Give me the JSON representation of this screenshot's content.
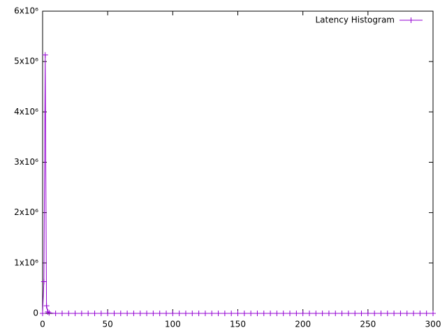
{
  "chart_data": {
    "type": "line",
    "x": [
      0,
      1,
      2,
      3,
      4,
      5,
      10,
      15,
      20,
      25,
      30,
      35,
      40,
      45,
      50,
      55,
      60,
      65,
      70,
      75,
      80,
      85,
      90,
      95,
      100,
      105,
      110,
      115,
      120,
      125,
      130,
      135,
      140,
      145,
      150,
      155,
      160,
      165,
      170,
      175,
      180,
      185,
      190,
      195,
      200,
      205,
      210,
      215,
      220,
      225,
      230,
      235,
      240,
      245,
      250,
      255,
      260,
      265,
      270,
      275,
      280,
      285,
      290,
      295,
      300
    ],
    "series": [
      {
        "name": "Latency Histogram",
        "color": "#9400d3",
        "values": [
          0,
          630000,
          5130000,
          150000,
          30000,
          10000,
          0,
          0,
          0,
          0,
          0,
          0,
          0,
          0,
          0,
          0,
          0,
          0,
          0,
          0,
          0,
          0,
          0,
          0,
          0,
          0,
          0,
          0,
          0,
          0,
          0,
          0,
          0,
          0,
          0,
          0,
          0,
          0,
          0,
          0,
          0,
          0,
          0,
          0,
          0,
          0,
          0,
          0,
          0,
          0,
          0,
          0,
          0,
          0,
          0,
          0,
          0,
          0,
          0,
          0,
          0,
          0,
          0,
          0,
          0
        ]
      }
    ],
    "xlim": [
      0,
      300
    ],
    "xticks": [
      0,
      50,
      100,
      150,
      200,
      250,
      300
    ],
    "ylim": [
      0,
      6000000
    ],
    "yticks": [
      0,
      {
        "value": 1000000,
        "label": "1x10⁶"
      },
      {
        "value": 2000000,
        "label": "2x10⁶"
      },
      {
        "value": 3000000,
        "label": "3x10⁶"
      },
      {
        "value": 4000000,
        "label": "4x10⁶"
      },
      {
        "value": 5000000,
        "label": "5x10⁶"
      },
      {
        "value": 6000000,
        "label": "6x10⁶"
      }
    ],
    "legend": "top-right"
  }
}
